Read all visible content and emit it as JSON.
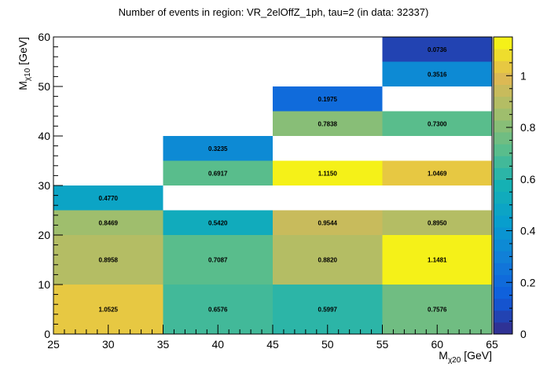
{
  "chart_data": {
    "type": "heatmap",
    "title": "Number of events in region: VR_2elOffZ_1ph, tau=2 (in data: 32337)",
    "xlabel_main": "M",
    "xlabel_sub": "χ20",
    "xlabel_unit": " [GeV]",
    "ylabel_main": "M",
    "ylabel_sub": "χ10",
    "ylabel_unit": " [GeV]",
    "xlim": [
      25,
      65
    ],
    "ylim": [
      0,
      60
    ],
    "zlim": [
      0,
      1.15
    ],
    "x_ticks": [
      25,
      30,
      35,
      40,
      45,
      50,
      55,
      60,
      65
    ],
    "y_ticks": [
      0,
      10,
      20,
      30,
      40,
      50,
      60
    ],
    "z_ticks": [
      0,
      0.2,
      0.4,
      0.6,
      0.8,
      1
    ],
    "cells": [
      {
        "x0": 25,
        "x1": 35,
        "y0": 0,
        "y1": 10,
        "value": 1.0525,
        "label": "1.0525"
      },
      {
        "x0": 35,
        "x1": 45,
        "y0": 0,
        "y1": 10,
        "value": 0.6576,
        "label": "0.6576"
      },
      {
        "x0": 45,
        "x1": 55,
        "y0": 0,
        "y1": 10,
        "value": 0.5997,
        "label": "0.5997"
      },
      {
        "x0": 55,
        "x1": 65,
        "y0": 0,
        "y1": 10,
        "value": 0.7576,
        "label": "0.7576"
      },
      {
        "x0": 25,
        "x1": 35,
        "y0": 10,
        "y1": 20,
        "value": 0.8958,
        "label": "0.8958"
      },
      {
        "x0": 35,
        "x1": 45,
        "y0": 10,
        "y1": 20,
        "value": 0.7087,
        "label": "0.7087"
      },
      {
        "x0": 45,
        "x1": 55,
        "y0": 10,
        "y1": 20,
        "value": 0.882,
        "label": "0.8820"
      },
      {
        "x0": 55,
        "x1": 65,
        "y0": 10,
        "y1": 20,
        "value": 1.1481,
        "label": "1.1481"
      },
      {
        "x0": 25,
        "x1": 35,
        "y0": 20,
        "y1": 25,
        "value": 0.8469,
        "label": "0.8469"
      },
      {
        "x0": 35,
        "x1": 45,
        "y0": 20,
        "y1": 25,
        "value": 0.542,
        "label": "0.5420"
      },
      {
        "x0": 45,
        "x1": 55,
        "y0": 20,
        "y1": 25,
        "value": 0.9544,
        "label": "0.9544"
      },
      {
        "x0": 55,
        "x1": 65,
        "y0": 20,
        "y1": 25,
        "value": 0.895,
        "label": "0.8950"
      },
      {
        "x0": 25,
        "x1": 35,
        "y0": 25,
        "y1": 30,
        "value": 0.477,
        "label": "0.4770"
      },
      {
        "x0": 35,
        "x1": 45,
        "y0": 30,
        "y1": 35,
        "value": 0.6917,
        "label": "0.6917"
      },
      {
        "x0": 45,
        "x1": 55,
        "y0": 30,
        "y1": 35,
        "value": 1.115,
        "label": "1.1150"
      },
      {
        "x0": 55,
        "x1": 65,
        "y0": 30,
        "y1": 35,
        "value": 1.0469,
        "label": "1.0469"
      },
      {
        "x0": 35,
        "x1": 45,
        "y0": 35,
        "y1": 40,
        "value": 0.3235,
        "label": "0.3235"
      },
      {
        "x0": 45,
        "x1": 55,
        "y0": 40,
        "y1": 45,
        "value": 0.7838,
        "label": "0.7838"
      },
      {
        "x0": 55,
        "x1": 65,
        "y0": 40,
        "y1": 45,
        "value": 0.73,
        "label": "0.7300"
      },
      {
        "x0": 45,
        "x1": 55,
        "y0": 45,
        "y1": 50,
        "value": 0.1975,
        "label": "0.1975"
      },
      {
        "x0": 55,
        "x1": 65,
        "y0": 50,
        "y1": 55,
        "value": 0.3516,
        "label": "0.3516"
      },
      {
        "x0": 55,
        "x1": 65,
        "y0": 55,
        "y1": 60,
        "value": 0.0736,
        "label": "0.0736"
      }
    ]
  }
}
